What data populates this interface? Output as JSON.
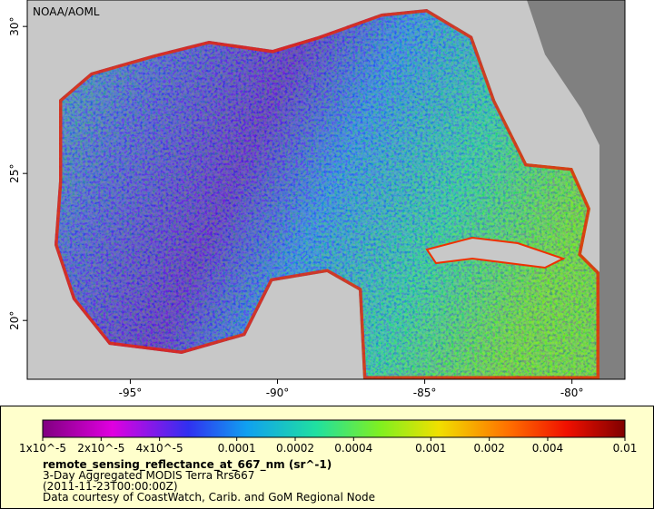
{
  "map": {
    "credit": "NOAA/AOML",
    "xlim": [
      -98.5,
      -78.2
    ],
    "ylim": [
      18,
      30.9
    ],
    "xticks": [
      {
        "value": -95,
        "label": "-95°"
      },
      {
        "value": -90,
        "label": "-90°"
      },
      {
        "value": -85,
        "label": "-85°"
      },
      {
        "value": -80,
        "label": "-80°"
      }
    ],
    "yticks": [
      {
        "value": 20,
        "label": "20°"
      },
      {
        "value": 25,
        "label": "25°"
      },
      {
        "value": 30,
        "label": "30°"
      }
    ]
  },
  "colorbar": {
    "lim": [
      1e-05,
      0.01
    ],
    "log": true,
    "ticks": [
      {
        "value": 1e-05,
        "label": "1x10^-5"
      },
      {
        "value": 2e-05,
        "label": "2x10^-5"
      },
      {
        "value": 4e-05,
        "label": "4x10^-5"
      },
      0.0001,
      0.0002,
      0.0004,
      0.001,
      0.002,
      0.004,
      0.01
    ]
  },
  "legend": {
    "variable": "remote_sensing_reflectance_at_667_nm (sr^-1)",
    "lines": [
      "3-Day Aggregated MODIS Terra Rrs667",
      "(2011-11-23T00:00:00Z)",
      "Data courtesy of CoastWatch, Carib. and GoM Regional Node"
    ]
  }
}
